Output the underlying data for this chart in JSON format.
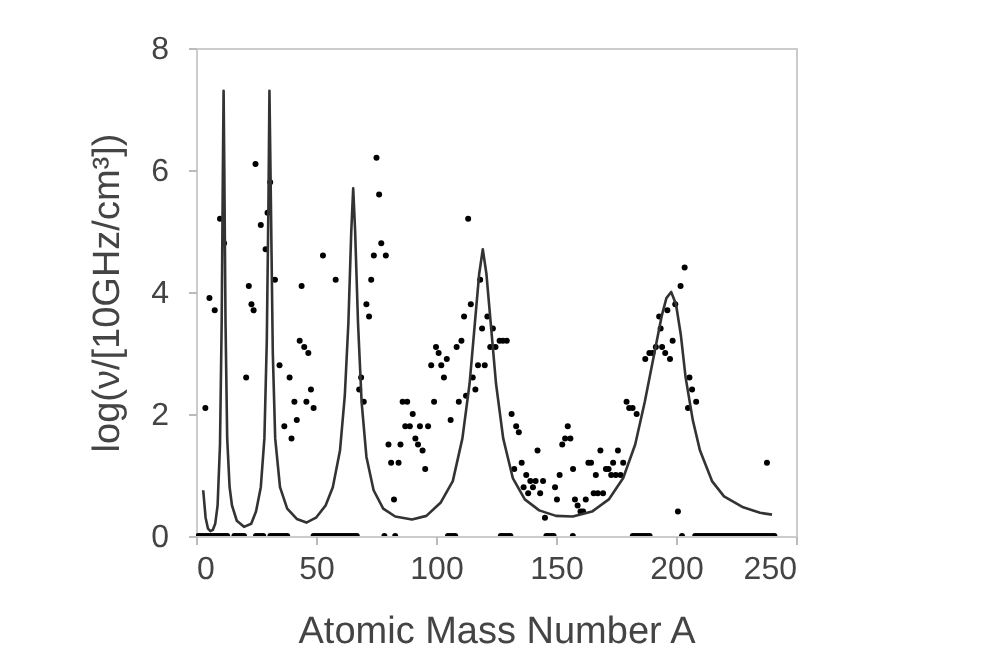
{
  "chart_data": {
    "type": "scatter",
    "xlabel": "Atomic Mass Number A",
    "ylabel": "log(ν/[10GHz/cm³])",
    "xlim": [
      0,
      250
    ],
    "ylim": [
      0,
      8
    ],
    "xticks": [
      0,
      50,
      100,
      150,
      200,
      250
    ],
    "yticks": [
      0,
      2,
      4,
      6,
      8
    ],
    "grid": false,
    "marker": "circle",
    "series": [
      {
        "color": "#000000",
        "x": [
          3.9,
          5.6,
          7.8,
          10,
          11.7,
          20.9,
          22,
          23.1,
          24,
          24.8,
          27,
          29,
          29.8,
          30.9,
          32.9,
          34.8,
          36.8,
          39,
          39.8,
          41,
          42,
          43.2,
          44,
          45.1,
          46,
          46.8,
          47.9,
          49,
          52.9,
          58.2,
          68,
          68.8,
          69.9,
          71,
          72.1,
          73,
          74.1,
          75.2,
          76.3,
          77.2,
          79.1,
          80.2,
          81.3,
          82.5,
          84.4,
          85.2,
          86.1,
          87.2,
          88,
          89.1,
          90.3,
          91.4,
          92.5,
          93.3,
          94.4,
          95.5,
          96.7,
          98,
          99.2,
          100,
          101.1,
          102.2,
          103.3,
          104.5,
          106.1,
          108.6,
          109.5,
          110.6,
          111.7,
          112.5,
          113.4,
          114.5,
          115.3,
          116.4,
          117.5,
          118.4,
          119.2,
          120.3,
          121.4,
          122.6,
          123.7,
          124.8,
          126.5,
          127.9,
          129.5,
          131.5,
          132.6,
          133.4,
          134.5,
          135.7,
          136.5,
          137.6,
          138.4,
          139.3,
          140.4,
          141.5,
          142.3,
          143.4,
          144.6,
          145.4,
          149.6,
          150.4,
          151.5,
          152.6,
          153.8,
          154.9,
          156,
          157.1,
          157.9,
          159,
          160.2,
          161.3,
          162.4,
          163.5,
          164.6,
          165.7,
          166.6,
          167.4,
          168.5,
          169.6,
          170.8,
          171.9,
          173,
          173.8,
          174.9,
          175.8,
          176.9,
          178,
          179.4,
          180.5,
          181.9,
          183.6,
          187.2,
          188.9,
          190.2,
          191.6,
          193,
          193.6,
          194.2,
          195.5,
          196.4,
          197.5,
          198.6,
          199.7,
          200.8,
          201.9,
          203.6,
          205,
          205.6,
          206.7,
          208.4,
          237.9
        ],
        "values": [
          2.1,
          3.9,
          3.7,
          5.2,
          4.8,
          2.6,
          4.1,
          3.8,
          3.7,
          6.1,
          5.1,
          4.7,
          5.3,
          5.8,
          4.2,
          2.8,
          1.8,
          2.6,
          1.6,
          2.2,
          1.9,
          3.2,
          4.1,
          3.1,
          2.2,
          3.0,
          2.4,
          2.1,
          4.6,
          4.2,
          2.4,
          2.6,
          2.2,
          3.8,
          3.6,
          4.2,
          4.6,
          6.2,
          5.6,
          4.8,
          4.6,
          1.5,
          1.2,
          0.6,
          1.2,
          1.5,
          2.2,
          1.8,
          2.2,
          1.8,
          2.0,
          1.6,
          1.5,
          1.8,
          1.4,
          1.1,
          1.8,
          2.8,
          2.2,
          3.1,
          3.0,
          2.8,
          2.6,
          2.9,
          1.9,
          3.1,
          2.2,
          3.2,
          3.6,
          2.3,
          5.2,
          3.8,
          2.6,
          2.4,
          2.8,
          4.2,
          3.4,
          2.8,
          3.6,
          3.1,
          3.4,
          3.1,
          3.2,
          3.2,
          3.2,
          2.0,
          1.1,
          1.8,
          1.7,
          1.2,
          0.8,
          1.0,
          0.7,
          0.9,
          0.8,
          0.9,
          1.4,
          0.7,
          0.9,
          0.3,
          0.8,
          0.6,
          1.0,
          1.5,
          1.6,
          1.8,
          1.6,
          1.1,
          0.6,
          0.5,
          0.4,
          0.4,
          0.6,
          1.2,
          1.2,
          0.7,
          1.0,
          0.7,
          1.4,
          0.7,
          1.1,
          1.1,
          1.0,
          1.2,
          1.0,
          1.4,
          1.0,
          1.2,
          2.2,
          2.1,
          2.1,
          2.0,
          2.9,
          3.0,
          3.0,
          3.1,
          3.6,
          3.4,
          3.1,
          3.0,
          3.7,
          2.9,
          3.2,
          3.8,
          0.4,
          4.1,
          4.4,
          2.1,
          2.6,
          2.4,
          2.2,
          1.2
        ]
      },
      {
        "color": "#000000",
        "x": [
          1,
          2,
          3,
          4,
          5,
          6,
          7,
          8,
          9,
          10,
          11,
          12,
          13,
          16,
          17,
          18,
          19,
          20,
          25,
          26,
          27,
          28,
          31,
          32,
          33,
          34,
          35,
          36,
          37,
          38,
          49,
          50,
          51,
          52,
          53,
          54,
          55,
          56,
          57,
          58,
          59,
          60,
          61,
          62,
          63,
          64,
          65,
          66,
          67,
          78.5,
          83,
          105,
          106,
          107,
          108,
          127,
          128,
          129,
          130,
          131,
          146,
          147,
          148,
          149,
          157,
          182,
          183,
          184,
          185,
          186,
          187,
          188,
          189,
          202.5,
          208,
          209,
          210,
          211,
          212,
          213,
          214,
          215,
          216,
          217,
          218,
          219,
          220,
          221,
          222,
          223,
          224,
          225,
          226,
          227,
          228,
          229,
          230,
          231,
          232,
          233,
          234,
          235,
          236,
          237,
          238,
          239,
          240,
          241
        ],
        "values": [
          0,
          0,
          0,
          0,
          0,
          0,
          0,
          0,
          0,
          0,
          0,
          0,
          0,
          0,
          0,
          0,
          0,
          0,
          0,
          0,
          0,
          0,
          0,
          0,
          0,
          0,
          0,
          0,
          0,
          0,
          0,
          0,
          0,
          0,
          0,
          0,
          0,
          0,
          0,
          0,
          0,
          0,
          0,
          0,
          0,
          0,
          0,
          0,
          0,
          0,
          0,
          0,
          0,
          0,
          0,
          0,
          0,
          0,
          0,
          0,
          0,
          0,
          0,
          0,
          0,
          0,
          0,
          0,
          0,
          0,
          0,
          0,
          0,
          0,
          0,
          0,
          0,
          0,
          0,
          0,
          0,
          0,
          0,
          0,
          0,
          0,
          0,
          0,
          0,
          0,
          0,
          0,
          0,
          0,
          0,
          0,
          0,
          0,
          0,
          0,
          0,
          0,
          0,
          0,
          0,
          0,
          0,
          0
        ]
      },
      {
        "type": "line",
        "marker": "none",
        "color": "#333333",
        "x": [
          3,
          4,
          5,
          6,
          7,
          8,
          9,
          10,
          10.7,
          11.2,
          11.5,
          11.8,
          12.3,
          13,
          14,
          15,
          17,
          20,
          23,
          25,
          27,
          28.5,
          29.5,
          30.2,
          30.6,
          31.2,
          32,
          33,
          35,
          38,
          42,
          46,
          50,
          54,
          57,
          60,
          62,
          63.5,
          64.7,
          65.5,
          66.3,
          67.5,
          69,
          71,
          74,
          78,
          83,
          90,
          96,
          102,
          107,
          111,
          114,
          116,
          118,
          119.5,
          121,
          123,
          125,
          128,
          132,
          137,
          143,
          150,
          157,
          165,
          172,
          178,
          183,
          187,
          191,
          194,
          196,
          198,
          200,
          202,
          204,
          207,
          210,
          215,
          220,
          228,
          235,
          240
        ],
        "values": [
          0.75,
          0.3,
          0.12,
          0.08,
          0.1,
          0.2,
          0.5,
          1.5,
          3.5,
          6,
          7.3,
          6,
          3.5,
          1.6,
          0.8,
          0.5,
          0.25,
          0.15,
          0.2,
          0.4,
          0.8,
          1.6,
          3.2,
          5.5,
          7.3,
          5.5,
          3,
          1.6,
          0.8,
          0.45,
          0.28,
          0.22,
          0.3,
          0.5,
          0.8,
          1.4,
          2.3,
          3.5,
          5,
          5.7,
          5,
          3.5,
          2.2,
          1.3,
          0.75,
          0.45,
          0.32,
          0.27,
          0.33,
          0.55,
          0.9,
          1.6,
          2.5,
          3.4,
          4.3,
          4.7,
          4.3,
          3.4,
          2.5,
          1.6,
          0.95,
          0.6,
          0.42,
          0.33,
          0.32,
          0.4,
          0.6,
          0.95,
          1.5,
          2.2,
          3.0,
          3.6,
          3.9,
          4.0,
          3.8,
          3.3,
          2.6,
          1.9,
          1.4,
          0.9,
          0.65,
          0.47,
          0.38,
          0.35
        ]
      }
    ]
  }
}
